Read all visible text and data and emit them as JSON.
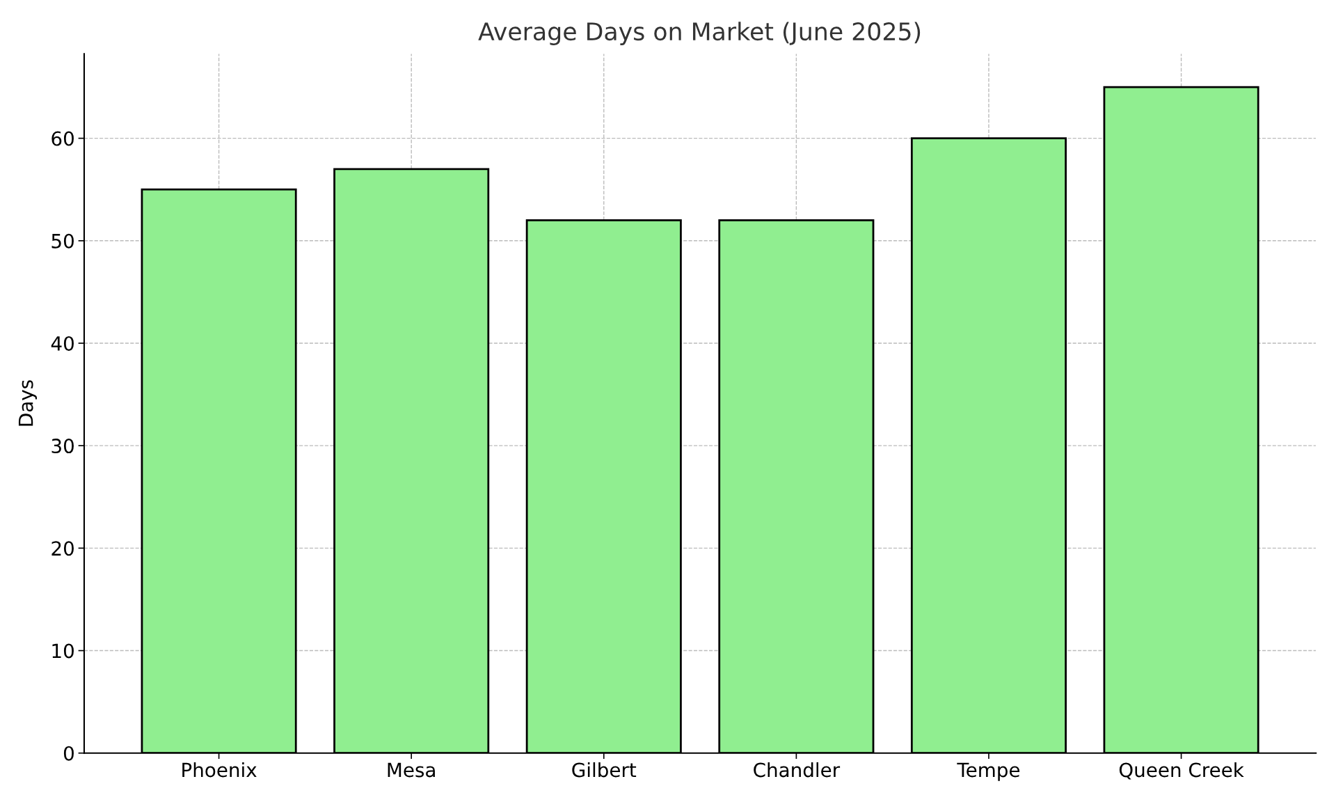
{
  "chart_data": {
    "type": "bar",
    "title": "Average Days on Market (June 2025)",
    "ylabel": "Days",
    "categories": [
      "Phoenix",
      "Mesa",
      "Gilbert",
      "Chandler",
      "Tempe",
      "Queen Creek"
    ],
    "values": [
      55,
      57,
      52,
      52,
      60,
      65
    ],
    "color": "#90ee90",
    "ylim": [
      0,
      68.25
    ],
    "yticks": [
      0,
      10,
      20,
      30,
      40,
      50,
      60
    ],
    "grid": true
  }
}
